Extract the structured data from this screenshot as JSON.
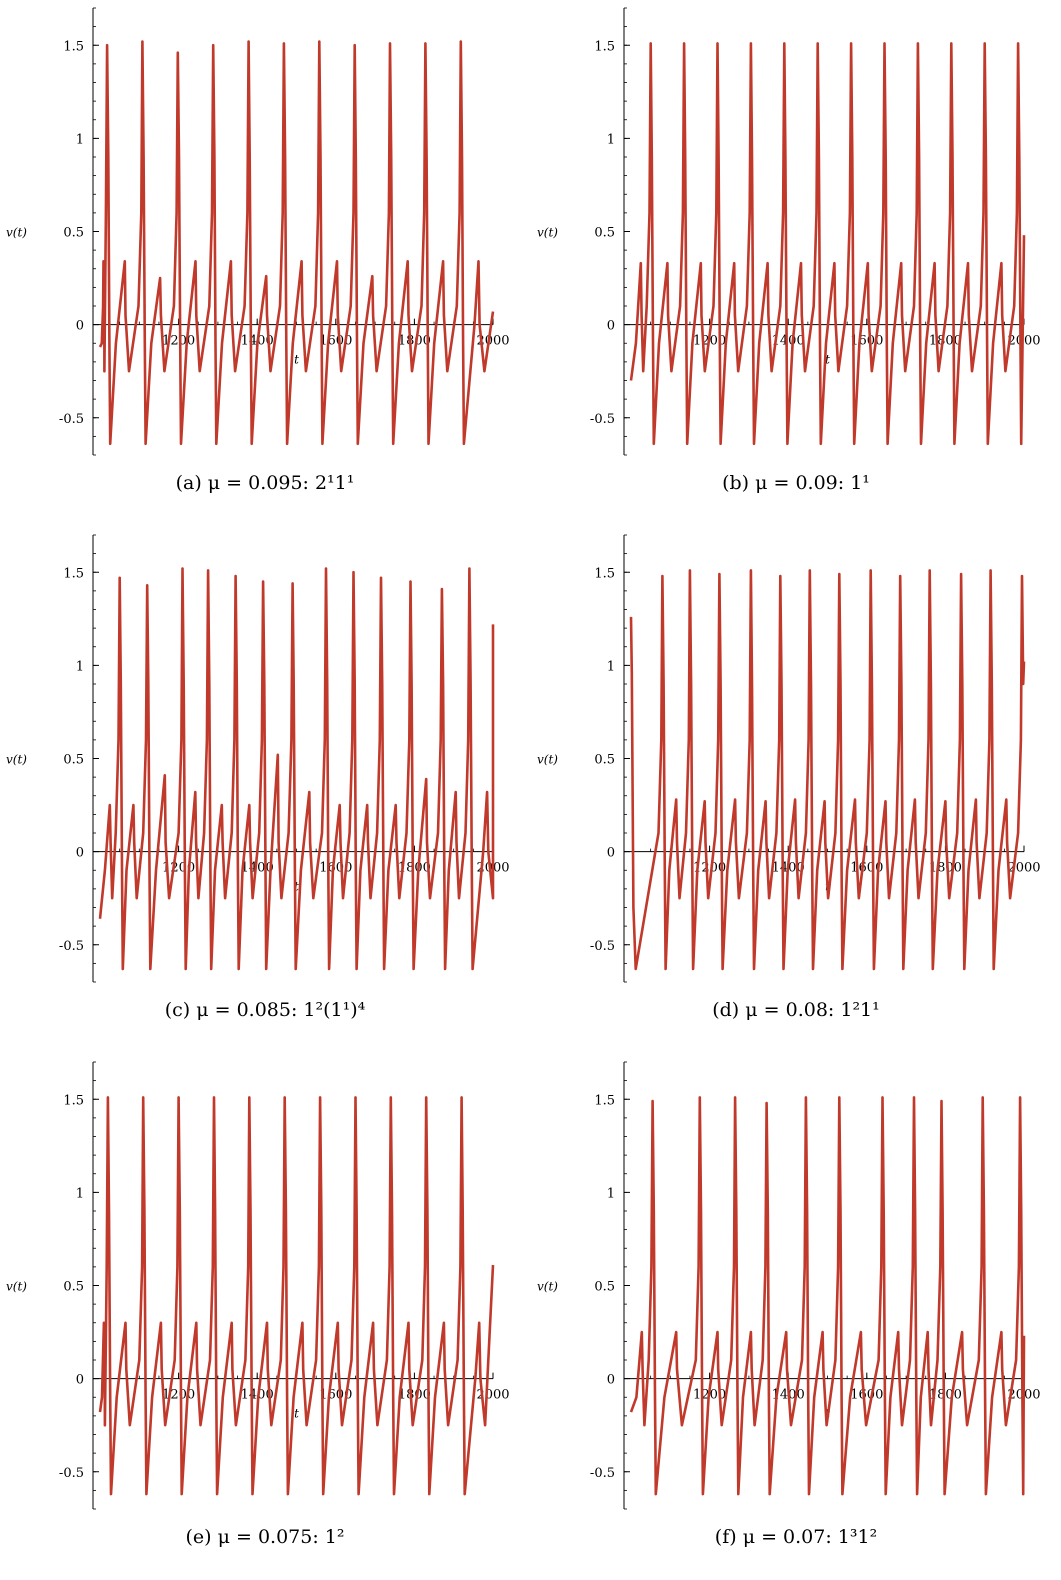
{
  "figure": {
    "panels": [
      {
        "caption": "(a) μ = 0.095:  2¹1¹",
        "pattern": "2^1 1^1"
      },
      {
        "caption": "(b) μ = 0.09:  1¹",
        "pattern": "1^1"
      },
      {
        "caption": "(c) μ = 0.085:  1²(1¹)⁴",
        "pattern": "1^2(1^1)^4"
      },
      {
        "caption": "(d) μ = 0.08:  1²1¹",
        "pattern": "1^2 1^1"
      },
      {
        "caption": "(e) μ = 0.075:  1²",
        "pattern": "1^2"
      },
      {
        "caption": "(f) μ = 0.07:  1³1²",
        "pattern": "1^3 1^2"
      }
    ]
  },
  "chart_data": [
    {
      "type": "line",
      "ylabel": "v(t)",
      "xlabel": "t",
      "xlim": [
        1000,
        2000
      ],
      "ylim": [
        -0.7,
        1.7
      ],
      "xticks": [
        "1200",
        "1400",
        "1600",
        "1800",
        "2000"
      ],
      "yticks": [
        "-0.5",
        "0",
        "0.5",
        "1",
        "1.5"
      ],
      "line_color": "#c0392b",
      "big_spike_t": [
        1018,
        1108,
        1198,
        1288,
        1378,
        1468,
        1558,
        1648,
        1738,
        1828,
        1918
      ],
      "big_spike_peaks": [
        1.5,
        1.52,
        1.46,
        1.5,
        1.52,
        1.51,
        1.52,
        1.5,
        1.51,
        1.51,
        1.52
      ],
      "small_peaks": [
        0.34,
        0.34,
        0.25,
        0.34,
        0.34,
        0.26,
        0.34,
        0.34,
        0.26,
        0.34,
        0.34
      ],
      "trough": -0.64,
      "start_value": -0.12,
      "end_value": 0.07
    },
    {
      "type": "line",
      "ylabel": "v(t)",
      "xlabel": "t",
      "xlim": [
        1000,
        2000
      ],
      "ylim": [
        -0.7,
        1.7
      ],
      "xticks": [
        "1200",
        "1400",
        "1600",
        "1800",
        "2000"
      ],
      "yticks": [
        "-0.5",
        "0",
        "0.5",
        "1",
        "1.5"
      ],
      "line_color": "#c0392b",
      "big_spike_t": [
        1050,
        1135,
        1220,
        1305,
        1390,
        1475,
        1560,
        1645,
        1730,
        1815,
        1900,
        1985
      ],
      "big_spike_peaks": [
        1.51,
        1.51,
        1.51,
        1.51,
        1.51,
        1.51,
        1.51,
        1.51,
        1.51,
        1.51,
        1.51,
        1.51
      ],
      "small_peaks": [
        0.33,
        0.33,
        0.33,
        0.33,
        0.33,
        0.33,
        0.33,
        0.33,
        0.33,
        0.33,
        0.33
      ],
      "trough": -0.64,
      "start_value": -0.3,
      "end_value": 0.48
    },
    {
      "type": "line",
      "ylabel": "v(t)",
      "xlabel": "t",
      "xlim": [
        1000,
        2000
      ],
      "ylim": [
        -0.7,
        1.7
      ],
      "xticks": [
        "1200",
        "1400",
        "1600",
        "1800",
        "2000"
      ],
      "yticks": [
        "-0.5",
        "0",
        "0.5",
        "1",
        "1.5"
      ],
      "line_color": "#c0392b",
      "big_spike_t": [
        1050,
        1120,
        1210,
        1275,
        1345,
        1415,
        1490,
        1575,
        1645,
        1715,
        1790,
        1870,
        1940
      ],
      "big_spike_peaks": [
        1.47,
        1.43,
        1.52,
        1.51,
        1.48,
        1.45,
        1.44,
        1.52,
        1.5,
        1.47,
        1.45,
        1.41,
        1.52
      ],
      "small_peaks": [
        0.25,
        0.25,
        0.41,
        0.32,
        0.25,
        0.25,
        0.52,
        0.32,
        0.25,
        0.25,
        0.25,
        0.39,
        0.32
      ],
      "trough": -0.63,
      "start_value": -0.36,
      "end_value": 1.22
    },
    {
      "type": "line",
      "ylabel": "v(t)",
      "xlabel": "t",
      "xlim": [
        1000,
        2000
      ],
      "ylim": [
        -0.7,
        1.7
      ],
      "xticks": [
        "1200",
        "1400",
        "1600",
        "1800",
        "2000"
      ],
      "yticks": [
        "-0.5",
        "0",
        "0.5",
        "1",
        "1.5"
      ],
      "line_color": "#c0392b",
      "big_spike_t": [
        1080,
        1150,
        1225,
        1305,
        1380,
        1455,
        1530,
        1610,
        1685,
        1760,
        1840,
        1915,
        1995
      ],
      "big_spike_peaks": [
        1.48,
        1.51,
        1.49,
        1.51,
        1.48,
        1.51,
        1.49,
        1.51,
        1.48,
        1.51,
        1.49,
        1.51,
        1.48
      ],
      "small_peaks": [
        0.27,
        0.28,
        0.27,
        0.28,
        0.27,
        0.28,
        0.27,
        0.28,
        0.27,
        0.28,
        0.27,
        0.28
      ],
      "trough": -0.63,
      "start_value": 1.26,
      "end_value": 1.02
    },
    {
      "type": "line",
      "ylabel": "v(t)",
      "xlabel": "t",
      "xlim": [
        1000,
        2000
      ],
      "ylim": [
        -0.7,
        1.7
      ],
      "xticks": [
        "1200",
        "1400",
        "1600",
        "1800",
        "2000"
      ],
      "yticks": [
        "-0.5",
        "0",
        "0.5",
        "1",
        "1.5"
      ],
      "line_color": "#c0392b",
      "big_spike_t": [
        1020,
        1110,
        1200,
        1290,
        1380,
        1470,
        1560,
        1650,
        1740,
        1830,
        1920
      ],
      "big_spike_peaks": [
        1.51,
        1.51,
        1.51,
        1.51,
        1.51,
        1.51,
        1.51,
        1.51,
        1.51,
        1.51,
        1.51
      ],
      "small_peaks": [
        0.3,
        0.3,
        0.3,
        0.3,
        0.3,
        0.3,
        0.3,
        0.3,
        0.3,
        0.3,
        0.3
      ],
      "trough": -0.62,
      "start_value": -0.18,
      "end_value": 0.61
    },
    {
      "type": "line",
      "ylabel": "v(t)",
      "xlabel": "t",
      "xlim": [
        1000,
        2000
      ],
      "ylim": [
        -0.7,
        1.7
      ],
      "xticks": [
        "1200",
        "1400",
        "1600",
        "1800",
        "2000"
      ],
      "yticks": [
        "-0.5",
        "0",
        "0.5",
        "1",
        "1.5"
      ],
      "line_color": "#c0392b",
      "big_spike_t": [
        1055,
        1175,
        1265,
        1345,
        1445,
        1530,
        1640,
        1720,
        1790,
        1895,
        1990
      ],
      "big_spike_peaks": [
        1.49,
        1.51,
        1.51,
        1.48,
        1.51,
        1.51,
        1.51,
        1.51,
        1.49,
        1.51,
        1.51
      ],
      "small_peaks": [
        0.25,
        0.25,
        0.25,
        0.25,
        0.25,
        0.25,
        0.25,
        0.25,
        0.25,
        0.25,
        0.25
      ],
      "trough": -0.62,
      "start_value": -0.18,
      "end_value": 0.23
    }
  ]
}
